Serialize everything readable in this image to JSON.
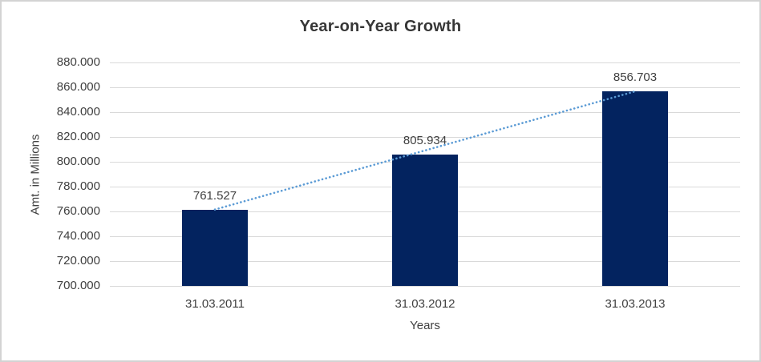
{
  "window": {
    "background_color": "#ffffff",
    "border_color": "#d3d3d3"
  },
  "chart_data": {
    "type": "bar",
    "title": "Year-on-Year Growth",
    "xlabel": "Years",
    "ylabel": "Amt. in Millions",
    "categories": [
      "31.03.2011",
      "31.03.2012",
      "31.03.2013"
    ],
    "values": [
      761.527,
      805.934,
      856.703
    ],
    "data_labels": [
      "761.527",
      "805.934",
      "856.703"
    ],
    "ylim": [
      700,
      880
    ],
    "ytick_step": 20,
    "ytick_labels": [
      "700.000",
      "720.000",
      "740.000",
      "760.000",
      "780.000",
      "800.000",
      "820.000",
      "840.000",
      "860.000",
      "880.000"
    ],
    "grid": true,
    "legend": "none",
    "bar_color": "#03235f",
    "gridline_color": "#d9d9d9",
    "text_color": "#404040",
    "title_color": "#373737",
    "trendline": {
      "type": "linear",
      "style": "dotted",
      "color": "#5b9bd5"
    }
  }
}
